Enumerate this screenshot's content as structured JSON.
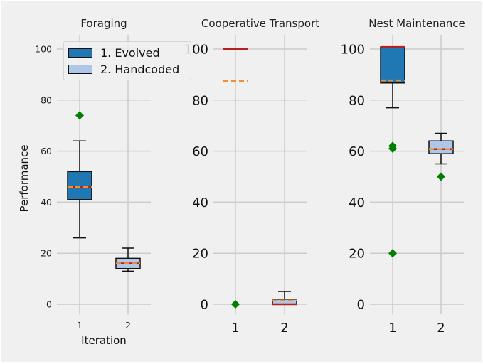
{
  "chart_data": [
    {
      "type": "box",
      "title": "Foraging",
      "xlabel": "Iteration",
      "ylabel": "Performance",
      "categories": [
        "1",
        "2"
      ],
      "yticks": [
        0,
        20,
        40,
        60,
        80,
        100
      ],
      "ylim": [
        -5,
        106
      ],
      "grid": true,
      "legend": {
        "position": "upper left",
        "entries": [
          "1. Evolved",
          "2. Handcoded"
        ]
      },
      "series": [
        {
          "name": "1. Evolved",
          "color": "#1f77b4",
          "whisker_low": 26,
          "q1": 41,
          "median": 46,
          "mean": 46,
          "q3": 52,
          "whisker_high": 64,
          "outliers": [
            74
          ]
        },
        {
          "name": "2. Handcoded",
          "color": "#aec7e8",
          "whisker_low": 13,
          "q1": 14,
          "median": 16,
          "mean": 16,
          "q3": 18,
          "whisker_high": 22,
          "outliers": []
        }
      ]
    },
    {
      "type": "box",
      "title": "Cooperative Transport",
      "xlabel": "",
      "ylabel": "",
      "categories": [
        "1",
        "2"
      ],
      "yticks": [
        0,
        20,
        40,
        60,
        80,
        100
      ],
      "ylim": [
        -5,
        106
      ],
      "grid": true,
      "series": [
        {
          "name": "1. Evolved",
          "color": "#1f77b4",
          "whisker_low": 100,
          "q1": 100,
          "median": 100,
          "mean": 87.5,
          "q3": 100,
          "whisker_high": 100,
          "outliers": [
            0
          ]
        },
        {
          "name": "2. Handcoded",
          "color": "#aec7e8",
          "whisker_low": 0,
          "q1": 0,
          "median": 0,
          "mean": 1.5,
          "q3": 2,
          "whisker_high": 5,
          "outliers": []
        }
      ]
    },
    {
      "type": "box",
      "title": "Nest Maintenance",
      "xlabel": "",
      "ylabel": "",
      "categories": [
        "1",
        "2"
      ],
      "yticks": [
        0,
        20,
        40,
        60,
        80,
        100
      ],
      "ylim": [
        -5,
        106
      ],
      "grid": true,
      "series": [
        {
          "name": "1. Evolved",
          "color": "#1f77b4",
          "whisker_low": 77,
          "q1": 86.7,
          "median": 100.8,
          "mean": 87.7,
          "q3": 100.8,
          "whisker_high": 100.8,
          "outliers": [
            62,
            61,
            20
          ]
        },
        {
          "name": "2. Handcoded",
          "color": "#aec7e8",
          "whisker_low": 55,
          "q1": 59,
          "median": 60.8,
          "mean": 60.8,
          "q3": 64,
          "whisker_high": 67,
          "outliers": [
            50
          ]
        }
      ]
    }
  ],
  "style": {
    "background": "#f0f0f0",
    "grid_color": "#cbcbcb",
    "median_color": "#b22222",
    "mean_color": "#f28e2b",
    "outlier_color": "#008000",
    "box_edge": "#111111"
  },
  "legend": {
    "items": [
      {
        "label": "1. Evolved",
        "color": "#1f77b4"
      },
      {
        "label": "2. Handcoded",
        "color": "#aec7e8"
      }
    ]
  },
  "labels": {
    "ylabel": "Performance",
    "xlabel": "Iteration"
  }
}
